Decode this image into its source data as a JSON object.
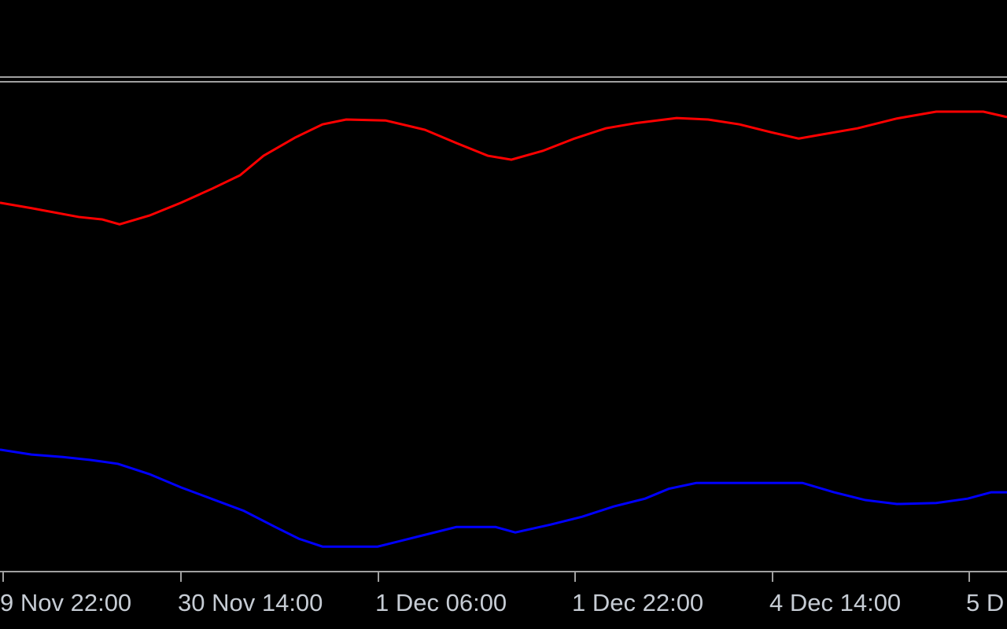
{
  "chart_data": {
    "type": "line",
    "xlim": [
      0,
      128
    ],
    "ylim": [
      0,
      100
    ],
    "xticks": [
      {
        "value": 0.4,
        "label": "9 Nov 22:00"
      },
      {
        "value": 23.0,
        "label": "30 Nov 14:00"
      },
      {
        "value": 48.1,
        "label": "1 Dec 06:00"
      },
      {
        "value": 73.1,
        "label": "1 Dec 22:00"
      },
      {
        "value": 98.2,
        "label": "4 Dec 14:00"
      },
      {
        "value": 123.2,
        "label": "5 D"
      }
    ],
    "series": [
      {
        "color": "#ff0000",
        "x": [
          0,
          4,
          10,
          13,
          15.2,
          19,
          23,
          27,
          30.5,
          33.5,
          37.5,
          41,
          44,
          49,
          54,
          58,
          62,
          65,
          69,
          73,
          77,
          81,
          86,
          90,
          94,
          98,
          101.5,
          104,
          109,
          114,
          119,
          125,
          128
        ],
        "values": [
          75.3,
          74.2,
          72.4,
          71.9,
          70.9,
          72.7,
          75.3,
          78.2,
          80.9,
          84.9,
          88.6,
          91.3,
          92.3,
          92.1,
          90.2,
          87.5,
          84.9,
          84.1,
          85.9,
          88.4,
          90.5,
          91.6,
          92.6,
          92.3,
          91.3,
          89.7,
          88.4,
          89.1,
          90.5,
          92.5,
          93.9,
          93.9,
          92.8
        ]
      },
      {
        "color": "#0000ff",
        "x": [
          0,
          4,
          8,
          11.5,
          15,
          19,
          23,
          27,
          31,
          35,
          38,
          41,
          48,
          53,
          58,
          63,
          65.5,
          70,
          74,
          78,
          82,
          85,
          88.5,
          102,
          106,
          110,
          114,
          119,
          123,
          126,
          128
        ],
        "values": [
          24.9,
          23.9,
          23.4,
          22.8,
          22.0,
          19.9,
          17.2,
          14.8,
          12.4,
          9.1,
          6.7,
          5.1,
          5.1,
          7.1,
          9.1,
          9.1,
          8.0,
          9.6,
          11.2,
          13.3,
          14.9,
          16.9,
          18.1,
          18.1,
          16.2,
          14.6,
          13.8,
          14.0,
          14.9,
          16.2,
          16.2
        ]
      }
    ]
  }
}
